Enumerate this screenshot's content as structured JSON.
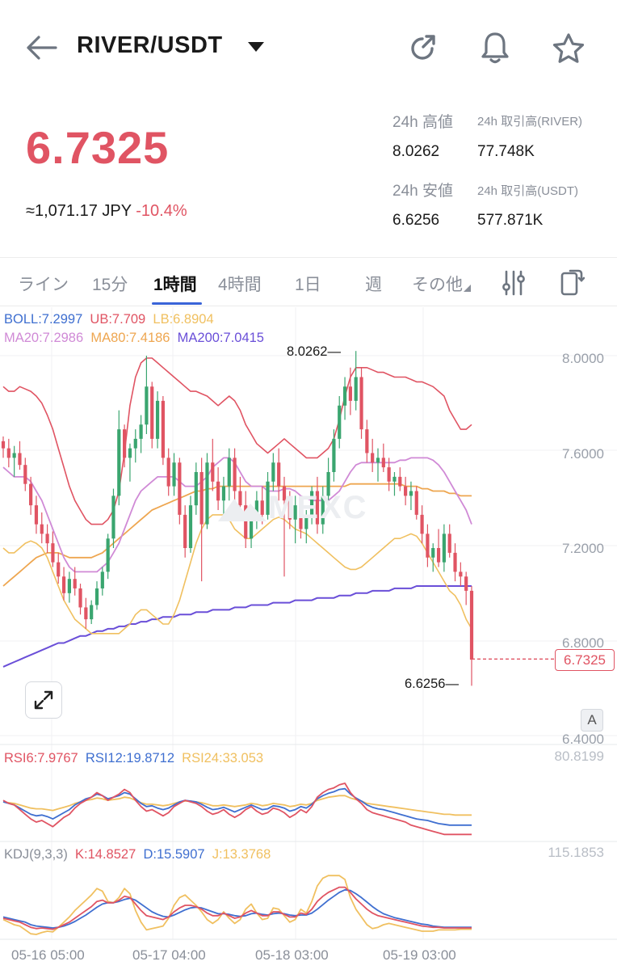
{
  "header": {
    "pair": "RIVER/USDT",
    "icons": [
      "back-arrow-icon",
      "dropdown-caret-icon",
      "share-refresh-icon",
      "bell-icon",
      "star-icon"
    ]
  },
  "ticker": {
    "price": "6.7325",
    "jpy": "≈1,071.17 JPY",
    "change": "-10.4%",
    "high_label": "24h 高値",
    "high_value": "8.0262",
    "low_label": "24h 安値",
    "low_value": "6.6256",
    "vol_river_label": "24h 取引高(RIVER)",
    "vol_river_value": "77.748K",
    "vol_usdt_label": "24h 取引高(USDT)",
    "vol_usdt_value": "577.871K",
    "up_color": "#3aa56f",
    "down_color": "#e05463"
  },
  "tabs": {
    "items": [
      "ライン",
      "15分",
      "1時間",
      "4時間",
      "1日",
      "週",
      "その他"
    ],
    "active": "1時間"
  },
  "indicators": {
    "boll": "BOLL:7.2997",
    "ub": "UB:7.709",
    "lb": "LB:6.8904",
    "ma20": "MA20:7.2986",
    "ma80": "MA80:7.4186",
    "ma200": "MA200:7.0415"
  },
  "main_chart": {
    "y_ticks": [
      "8.0000",
      "7.6000",
      "7.2000",
      "6.8000",
      "6.4000"
    ],
    "high_marker": "8.0262",
    "low_marker": "6.6256",
    "current_price": "6.7325",
    "scale_button": "A",
    "watermark": "MEXC"
  },
  "rsi": {
    "rsi6": "RSI6:7.9767",
    "rsi12": "RSI12:19.8712",
    "rsi24": "RSI24:33.053",
    "axis_max": "80.8199"
  },
  "kdj": {
    "label": "KDJ(9,3,3)",
    "k": "K:14.8527",
    "d": "D:15.5907",
    "j": "J:13.3768",
    "axis_max": "115.1853"
  },
  "x_axis": [
    "05-16 05:00",
    "05-17 04:00",
    "05-18 03:00",
    "05-19 03:00"
  ],
  "chart_data": {
    "type": "candlestick",
    "ylim": [
      6.4,
      8.1
    ],
    "candles": [
      [
        7.65,
        7.67,
        7.58,
        7.62
      ],
      [
        7.62,
        7.66,
        7.54,
        7.58
      ],
      [
        7.58,
        7.63,
        7.5,
        7.6
      ],
      [
        7.6,
        7.65,
        7.53,
        7.55
      ],
      [
        7.55,
        7.58,
        7.44,
        7.47
      ],
      [
        7.47,
        7.5,
        7.34,
        7.38
      ],
      [
        7.38,
        7.42,
        7.26,
        7.3
      ],
      [
        7.3,
        7.35,
        7.22,
        7.26
      ],
      [
        7.26,
        7.3,
        7.18,
        7.22
      ],
      [
        7.22,
        7.27,
        7.12,
        7.14
      ],
      [
        7.14,
        7.18,
        7.05,
        7.08
      ],
      [
        7.08,
        7.12,
        6.98,
        7.01
      ],
      [
        7.01,
        7.1,
        6.97,
        7.07
      ],
      [
        7.07,
        7.12,
        7.0,
        7.03
      ],
      [
        7.03,
        7.05,
        6.92,
        6.95
      ],
      [
        6.95,
        6.99,
        6.86,
        6.9
      ],
      [
        6.9,
        6.98,
        6.88,
        6.96
      ],
      [
        6.96,
        7.06,
        6.94,
        7.03
      ],
      [
        7.03,
        7.12,
        7.0,
        7.1
      ],
      [
        7.1,
        7.26,
        7.07,
        7.24
      ],
      [
        7.24,
        7.45,
        7.2,
        7.42
      ],
      [
        7.42,
        7.78,
        7.38,
        7.7
      ],
      [
        7.7,
        7.72,
        7.54,
        7.58
      ],
      [
        7.58,
        7.64,
        7.48,
        7.62
      ],
      [
        7.62,
        7.7,
        7.56,
        7.66
      ],
      [
        7.66,
        7.76,
        7.6,
        7.72
      ],
      [
        7.72,
        8.01,
        7.68,
        7.88
      ],
      [
        7.88,
        7.9,
        7.62,
        7.66
      ],
      [
        7.66,
        7.86,
        7.62,
        7.82
      ],
      [
        7.82,
        7.84,
        7.55,
        7.58
      ],
      [
        7.58,
        7.62,
        7.42,
        7.46
      ],
      [
        7.46,
        7.6,
        7.42,
        7.56
      ],
      [
        7.56,
        7.58,
        7.3,
        7.34
      ],
      [
        7.34,
        7.38,
        7.16,
        7.2
      ],
      [
        7.2,
        7.42,
        7.18,
        7.38
      ],
      [
        7.38,
        7.56,
        7.34,
        7.52
      ],
      [
        7.52,
        7.58,
        7.06,
        7.3
      ],
      [
        7.3,
        7.6,
        7.28,
        7.56
      ],
      [
        7.56,
        7.66,
        7.44,
        7.48
      ],
      [
        7.48,
        7.54,
        7.36,
        7.4
      ],
      [
        7.4,
        7.5,
        7.34,
        7.46
      ],
      [
        7.46,
        7.62,
        7.4,
        7.58
      ],
      [
        7.58,
        7.62,
        7.4,
        7.44
      ],
      [
        7.44,
        7.5,
        7.32,
        7.38
      ],
      [
        7.38,
        7.44,
        7.2,
        7.24
      ],
      [
        7.24,
        7.36,
        7.2,
        7.32
      ],
      [
        7.32,
        7.44,
        7.28,
        7.4
      ],
      [
        7.4,
        7.46,
        7.3,
        7.34
      ],
      [
        7.34,
        7.52,
        7.32,
        7.48
      ],
      [
        7.48,
        7.6,
        7.44,
        7.56
      ],
      [
        7.56,
        7.62,
        7.4,
        7.46
      ],
      [
        7.46,
        7.5,
        7.08,
        7.4
      ],
      [
        7.4,
        7.44,
        7.28,
        7.32
      ],
      [
        7.32,
        7.42,
        7.22,
        7.38
      ],
      [
        7.38,
        7.4,
        7.24,
        7.28
      ],
      [
        7.28,
        7.36,
        7.22,
        7.34
      ],
      [
        7.34,
        7.46,
        7.3,
        7.44
      ],
      [
        7.44,
        7.5,
        7.26,
        7.3
      ],
      [
        7.3,
        7.46,
        7.26,
        7.42
      ],
      [
        7.42,
        7.58,
        7.38,
        7.52
      ],
      [
        7.52,
        7.7,
        7.48,
        7.66
      ],
      [
        7.66,
        7.84,
        7.62,
        7.8
      ],
      [
        7.8,
        7.92,
        7.74,
        7.88
      ],
      [
        7.88,
        7.96,
        7.76,
        7.82
      ],
      [
        7.82,
        8.03,
        7.78,
        7.92
      ],
      [
        7.92,
        7.96,
        7.66,
        7.7
      ],
      [
        7.7,
        7.74,
        7.56,
        7.6
      ],
      [
        7.6,
        7.66,
        7.52,
        7.56
      ],
      [
        7.56,
        7.62,
        7.48,
        7.58
      ],
      [
        7.58,
        7.64,
        7.52,
        7.54
      ],
      [
        7.54,
        7.58,
        7.44,
        7.48
      ],
      [
        7.48,
        7.52,
        7.42,
        7.5
      ],
      [
        7.5,
        7.54,
        7.44,
        7.46
      ],
      [
        7.46,
        7.5,
        7.38,
        7.42
      ],
      [
        7.42,
        7.48,
        7.36,
        7.44
      ],
      [
        7.44,
        7.46,
        7.32,
        7.34
      ],
      [
        7.34,
        7.38,
        7.22,
        7.26
      ],
      [
        7.26,
        7.3,
        7.12,
        7.16
      ],
      [
        7.16,
        7.22,
        7.1,
        7.2
      ],
      [
        7.2,
        7.28,
        7.12,
        7.14
      ],
      [
        7.14,
        7.3,
        7.1,
        7.26
      ],
      [
        7.26,
        7.3,
        7.16,
        7.18
      ],
      [
        7.18,
        7.22,
        7.06,
        7.1
      ],
      [
        7.1,
        7.14,
        7.04,
        7.08
      ],
      [
        7.08,
        7.1,
        6.96,
        7.02
      ],
      [
        7.02,
        7.04,
        6.62,
        6.73
      ]
    ],
    "bollinger_upper": [
      7.88,
      7.86,
      7.86,
      7.88,
      7.87,
      7.86,
      7.84,
      7.81,
      7.76,
      7.7,
      7.62,
      7.54,
      7.46,
      7.4,
      7.36,
      7.32,
      7.3,
      7.3,
      7.3,
      7.32,
      7.36,
      7.44,
      7.6,
      7.8,
      7.92,
      7.98,
      8.0,
      8.0,
      7.98,
      7.96,
      7.94,
      7.92,
      7.9,
      7.88,
      7.86,
      7.86,
      7.85,
      7.84,
      7.82,
      7.8,
      7.82,
      7.84,
      7.82,
      7.78,
      7.72,
      7.68,
      7.64,
      7.62,
      7.6,
      7.62,
      7.64,
      7.66,
      7.64,
      7.62,
      7.6,
      7.58,
      7.58,
      7.58,
      7.6,
      7.62,
      7.66,
      7.74,
      7.84,
      7.92,
      7.96,
      7.96,
      7.96,
      7.95,
      7.94,
      7.94,
      7.93,
      7.92,
      7.92,
      7.92,
      7.91,
      7.9,
      7.9,
      7.89,
      7.88,
      7.86,
      7.84,
      7.78,
      7.74,
      7.7,
      7.7,
      7.72
    ],
    "bollinger_lower": [
      7.2,
      7.18,
      7.18,
      7.2,
      7.22,
      7.23,
      7.22,
      7.2,
      7.16,
      7.1,
      7.04,
      6.98,
      6.94,
      6.9,
      6.88,
      6.86,
      6.84,
      6.84,
      6.84,
      6.84,
      6.84,
      6.84,
      6.86,
      6.88,
      6.92,
      6.94,
      6.94,
      6.92,
      6.9,
      6.88,
      6.88,
      6.92,
      6.98,
      7.06,
      7.14,
      7.22,
      7.28,
      7.32,
      7.34,
      7.34,
      7.34,
      7.32,
      7.28,
      7.26,
      7.24,
      7.24,
      7.26,
      7.28,
      7.3,
      7.32,
      7.33,
      7.32,
      7.3,
      7.28,
      7.27,
      7.26,
      7.24,
      7.22,
      7.2,
      7.18,
      7.16,
      7.14,
      7.12,
      7.11,
      7.11,
      7.12,
      7.14,
      7.16,
      7.18,
      7.2,
      7.22,
      7.24,
      7.24,
      7.25,
      7.26,
      7.25,
      7.22,
      7.18,
      7.14,
      7.1,
      7.06,
      7.02,
      7.0,
      6.96,
      6.9,
      6.86
    ],
    "bollinger_mid": [
      7.54,
      7.52,
      7.5,
      7.5,
      7.5,
      7.48,
      7.44,
      7.4,
      7.34,
      7.28,
      7.22,
      7.16,
      7.12,
      7.1,
      7.1,
      7.1,
      7.1,
      7.1,
      7.12,
      7.14,
      7.18,
      7.22,
      7.28,
      7.34,
      7.4,
      7.44,
      7.46,
      7.48,
      7.5,
      7.5,
      7.5,
      7.5,
      7.48,
      7.46,
      7.46,
      7.46,
      7.48,
      7.5,
      7.54,
      7.56,
      7.58,
      7.58,
      7.56,
      7.52,
      7.48,
      7.46,
      7.46,
      7.46,
      7.44,
      7.44,
      7.44,
      7.45,
      7.45,
      7.44,
      7.42,
      7.41,
      7.4,
      7.4,
      7.4,
      7.4,
      7.42,
      7.44,
      7.48,
      7.52,
      7.55,
      7.56,
      7.56,
      7.56,
      7.56,
      7.56,
      7.56,
      7.56,
      7.57,
      7.57,
      7.58,
      7.58,
      7.58,
      7.58,
      7.57,
      7.55,
      7.52,
      7.48,
      7.44,
      7.4,
      7.36,
      7.3
    ],
    "ma80": [
      7.04,
      7.06,
      7.08,
      7.1,
      7.12,
      7.14,
      7.16,
      7.17,
      7.18,
      7.18,
      7.18,
      7.17,
      7.16,
      7.16,
      7.16,
      7.16,
      7.16,
      7.17,
      7.18,
      7.2,
      7.22,
      7.24,
      7.26,
      7.28,
      7.3,
      7.32,
      7.34,
      7.36,
      7.37,
      7.38,
      7.39,
      7.4,
      7.41,
      7.42,
      7.43,
      7.44,
      7.44,
      7.45,
      7.45,
      7.46,
      7.46,
      7.46,
      7.46,
      7.46,
      7.46,
      7.46,
      7.46,
      7.46,
      7.46,
      7.46,
      7.46,
      7.46,
      7.46,
      7.46,
      7.46,
      7.46,
      7.46,
      7.46,
      7.46,
      7.46,
      7.46,
      7.46,
      7.46,
      7.47,
      7.47,
      7.47,
      7.47,
      7.47,
      7.47,
      7.47,
      7.47,
      7.47,
      7.47,
      7.46,
      7.46,
      7.46,
      7.45,
      7.45,
      7.44,
      7.44,
      7.44,
      7.43,
      7.43,
      7.42,
      7.42,
      7.42
    ],
    "ma200": [
      6.7,
      6.71,
      6.72,
      6.73,
      6.74,
      6.75,
      6.76,
      6.77,
      6.78,
      6.79,
      6.8,
      6.8,
      6.81,
      6.82,
      6.83,
      6.83,
      6.84,
      6.85,
      6.85,
      6.86,
      6.86,
      6.87,
      6.87,
      6.88,
      6.88,
      6.89,
      6.89,
      6.9,
      6.9,
      6.91,
      6.91,
      6.91,
      6.92,
      6.92,
      6.92,
      6.93,
      6.93,
      6.93,
      6.94,
      6.94,
      6.94,
      6.94,
      6.95,
      6.95,
      6.95,
      6.96,
      6.96,
      6.96,
      6.96,
      6.97,
      6.97,
      6.97,
      6.97,
      6.98,
      6.98,
      6.98,
      6.98,
      6.99,
      6.99,
      6.99,
      6.99,
      7.0,
      7.0,
      7.0,
      7.01,
      7.01,
      7.01,
      7.02,
      7.02,
      7.02,
      7.02,
      7.03,
      7.03,
      7.03,
      7.03,
      7.04,
      7.04,
      7.04,
      7.04,
      7.04,
      7.04,
      7.04,
      7.04,
      7.04,
      7.04,
      7.04
    ],
    "rsi6": [
      52,
      48,
      46,
      40,
      34,
      28,
      24,
      26,
      22,
      18,
      24,
      30,
      34,
      42,
      48,
      52,
      56,
      62,
      58,
      52,
      56,
      60,
      66,
      62,
      52,
      44,
      38,
      40,
      36,
      32,
      36,
      44,
      48,
      52,
      50,
      48,
      44,
      38,
      34,
      36,
      40,
      34,
      30,
      34,
      40,
      44,
      38,
      34,
      36,
      42,
      40,
      36,
      30,
      34,
      40,
      36,
      44,
      56,
      62,
      66,
      68,
      72,
      74,
      62,
      54,
      48,
      40,
      36,
      34,
      32,
      30,
      28,
      26,
      24,
      20,
      18,
      16,
      14,
      12,
      10,
      8,
      8,
      8,
      8,
      8,
      8
    ],
    "rsi12": [
      50,
      48,
      46,
      42,
      38,
      34,
      32,
      33,
      31,
      28,
      32,
      36,
      40,
      46,
      50,
      54,
      56,
      60,
      58,
      54,
      56,
      58,
      62,
      60,
      54,
      48,
      44,
      45,
      42,
      40,
      42,
      46,
      50,
      52,
      51,
      50,
      47,
      43,
      40,
      41,
      43,
      40,
      37,
      40,
      43,
      46,
      43,
      40,
      41,
      45,
      44,
      42,
      38,
      40,
      44,
      42,
      47,
      54,
      58,
      61,
      63,
      66,
      67,
      60,
      55,
      51,
      46,
      43,
      41,
      40,
      38,
      36,
      34,
      32,
      30,
      28,
      27,
      26,
      24,
      22,
      21,
      20,
      20,
      20,
      20,
      20
    ],
    "rsi24": [
      50,
      49,
      48,
      46,
      44,
      42,
      41,
      41,
      40,
      39,
      41,
      43,
      45,
      48,
      50,
      52,
      53,
      55,
      54,
      52,
      53,
      54,
      56,
      55,
      52,
      49,
      47,
      47,
      46,
      45,
      46,
      48,
      50,
      51,
      51,
      50,
      49,
      47,
      45,
      45,
      46,
      45,
      44,
      45,
      46,
      48,
      47,
      45,
      46,
      48,
      47,
      46,
      44,
      45,
      47,
      46,
      48,
      52,
      54,
      56,
      57,
      58,
      58,
      55,
      53,
      51,
      48,
      47,
      46,
      45,
      44,
      43,
      42,
      41,
      40,
      39,
      38,
      37,
      36,
      35,
      34,
      34,
      33,
      33,
      33,
      33
    ],
    "kdj_k": [
      30,
      28,
      26,
      24,
      20,
      16,
      14,
      15,
      14,
      13,
      16,
      20,
      24,
      30,
      36,
      42,
      48,
      56,
      58,
      54,
      54,
      58,
      64,
      62,
      52,
      42,
      34,
      32,
      30,
      28,
      32,
      40,
      46,
      50,
      50,
      48,
      44,
      38,
      34,
      34,
      38,
      34,
      30,
      32,
      38,
      42,
      38,
      34,
      34,
      40,
      40,
      36,
      32,
      32,
      38,
      36,
      44,
      56,
      64,
      70,
      74,
      78,
      78,
      70,
      60,
      52,
      44,
      38,
      34,
      32,
      30,
      28,
      26,
      24,
      22,
      20,
      18,
      17,
      16,
      16,
      15,
      15,
      15,
      15,
      15,
      15
    ],
    "kdj_d": [
      32,
      30,
      28,
      26,
      24,
      20,
      18,
      17,
      16,
      15,
      16,
      18,
      21,
      25,
      30,
      35,
      41,
      47,
      52,
      54,
      54,
      56,
      59,
      61,
      58,
      52,
      46,
      40,
      36,
      33,
      32,
      35,
      39,
      43,
      46,
      47,
      46,
      43,
      40,
      37,
      37,
      36,
      34,
      33,
      34,
      37,
      38,
      36,
      35,
      37,
      38,
      37,
      35,
      34,
      35,
      35,
      38,
      44,
      51,
      58,
      64,
      70,
      74,
      73,
      68,
      62,
      55,
      48,
      42,
      37,
      34,
      31,
      29,
      27,
      25,
      23,
      21,
      20,
      18,
      17,
      16,
      16,
      16,
      16,
      16,
      16
    ],
    "kdj_j": [
      28,
      24,
      20,
      18,
      12,
      6,
      5,
      8,
      10,
      9,
      16,
      24,
      32,
      42,
      50,
      58,
      66,
      76,
      72,
      56,
      54,
      62,
      76,
      68,
      42,
      24,
      12,
      14,
      16,
      18,
      30,
      50,
      62,
      66,
      58,
      50,
      40,
      28,
      22,
      28,
      40,
      30,
      22,
      28,
      44,
      52,
      38,
      28,
      30,
      46,
      44,
      34,
      24,
      28,
      44,
      38,
      56,
      80,
      92,
      96,
      96,
      96,
      90,
      62,
      44,
      32,
      20,
      14,
      16,
      20,
      22,
      20,
      18,
      16,
      14,
      12,
      10,
      10,
      10,
      12,
      12,
      12,
      12,
      13,
      13,
      13
    ]
  }
}
